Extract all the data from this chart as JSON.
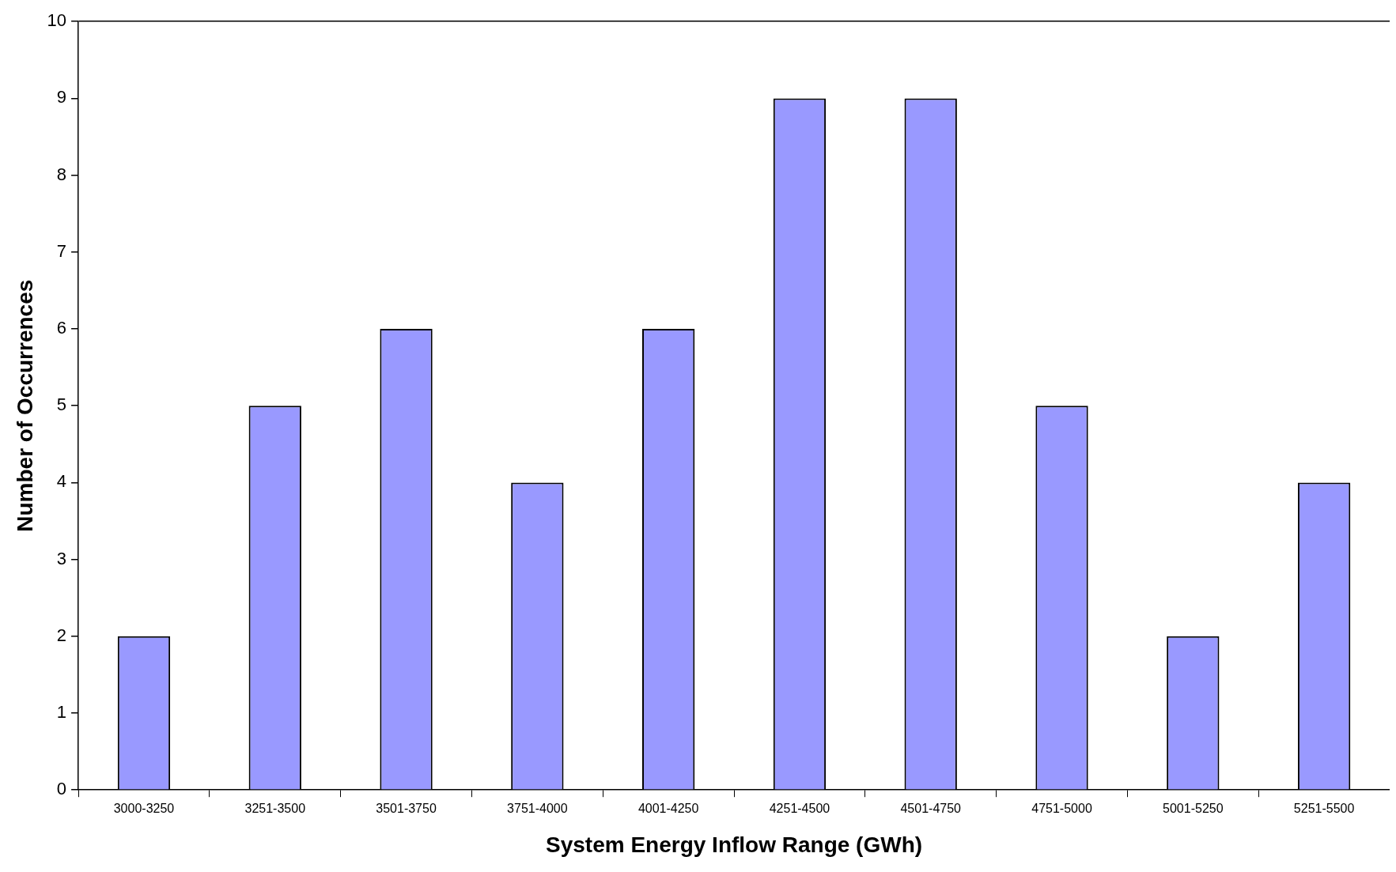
{
  "chart_data": {
    "type": "bar",
    "xlabel": "System Energy Inflow Range (GWh)",
    "ylabel": "Number of Occurrences",
    "categories": [
      "3000-3250",
      "3251-3500",
      "3501-3750",
      "3751-4000",
      "4001-4250",
      "4251-4500",
      "4501-4750",
      "4751-5000",
      "5001-5250",
      "5251-5500"
    ],
    "values": [
      2,
      5,
      6,
      4,
      6,
      9,
      9,
      5,
      2,
      4
    ],
    "color": "#9999ff",
    "ylim": [
      0,
      10
    ],
    "yticks": [
      0,
      1,
      2,
      3,
      4,
      5,
      6,
      7,
      8,
      9,
      10
    ],
    "grid": false,
    "legend": false
  }
}
